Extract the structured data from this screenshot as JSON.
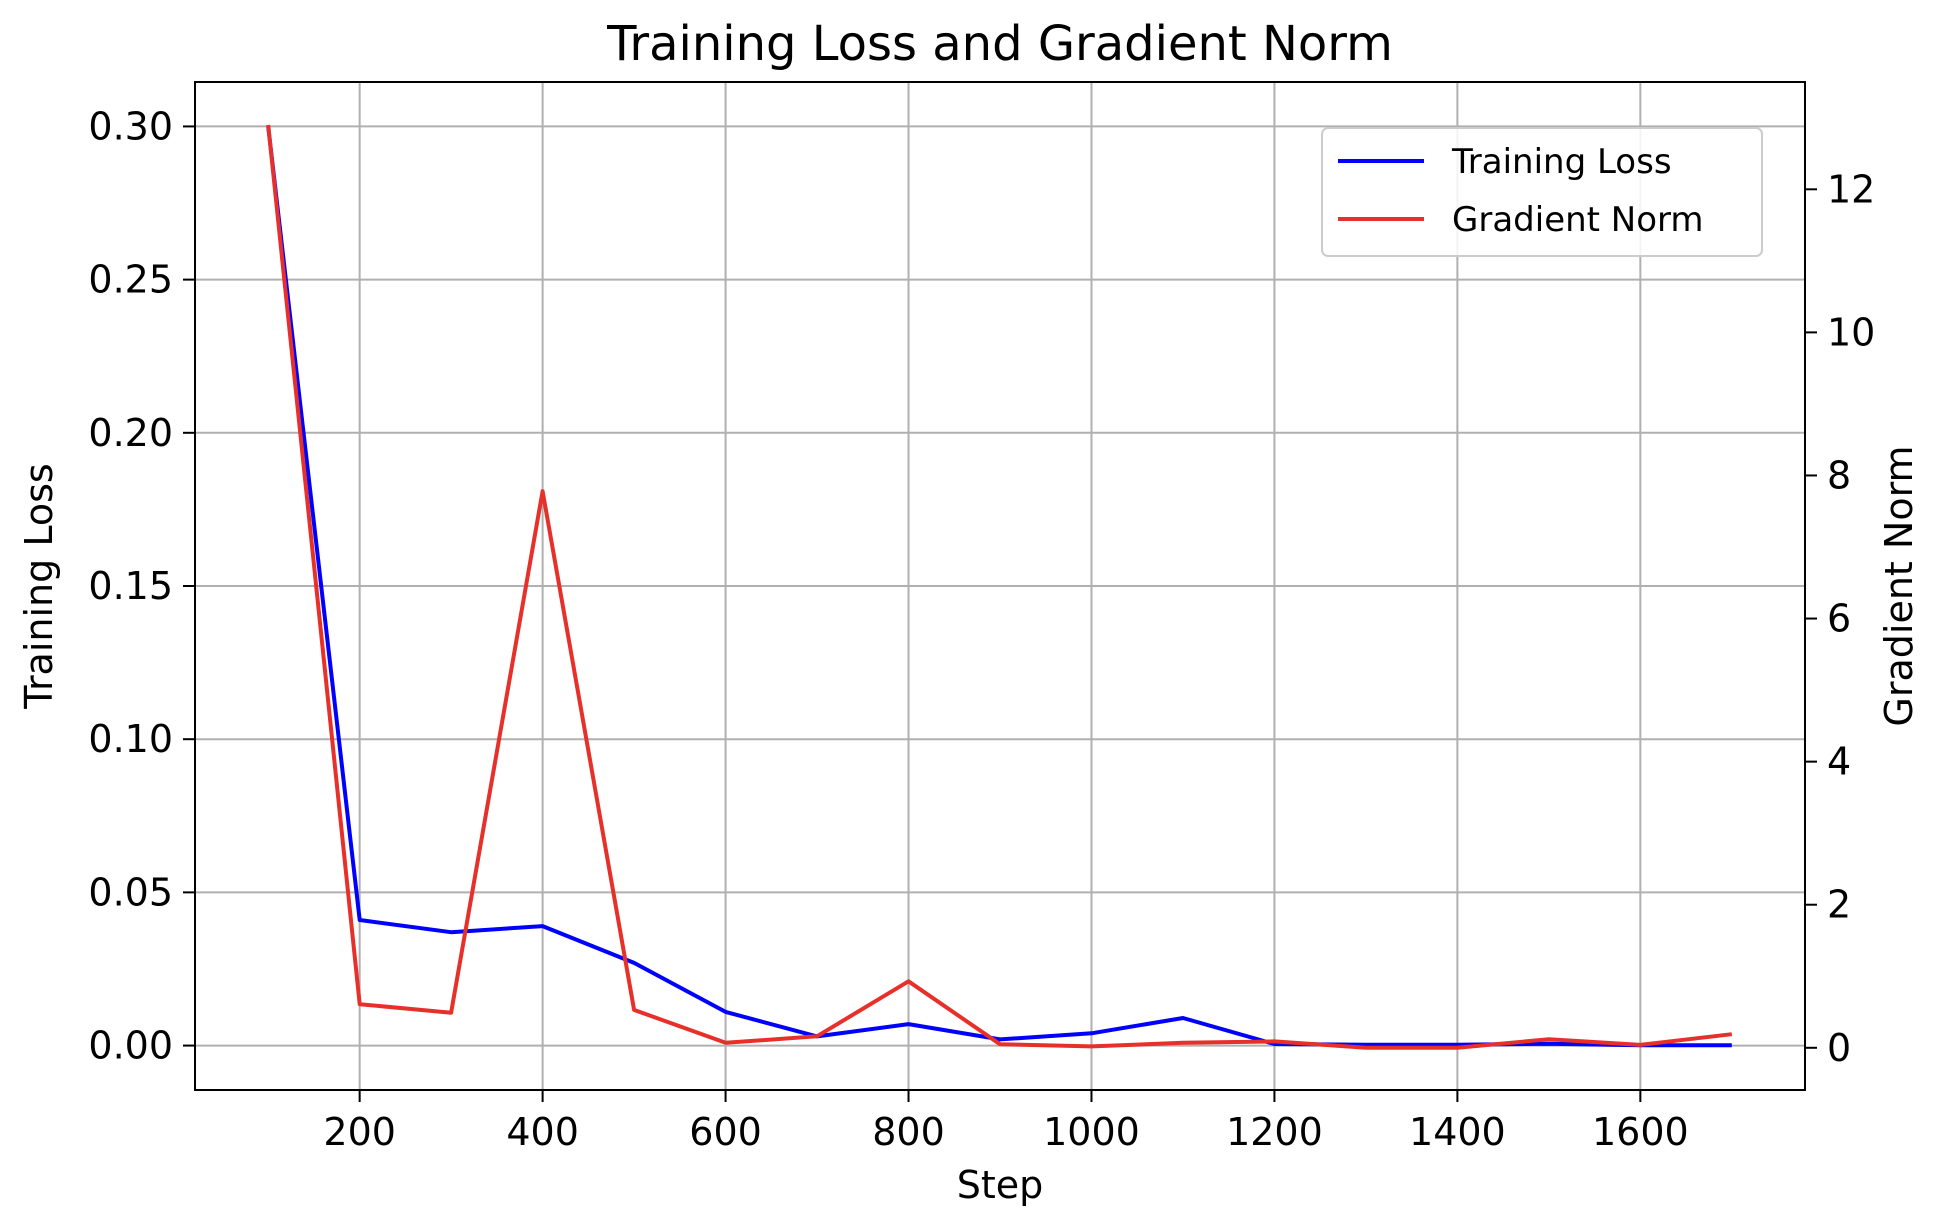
{
  "chart_data": {
    "type": "line",
    "title": "Training Loss and Gradient Norm",
    "xlabel": "Step",
    "ylabel_left": "Training Loss",
    "ylabel_right": "Gradient Norm",
    "x": [
      100,
      200,
      300,
      400,
      500,
      600,
      700,
      800,
      900,
      1000,
      1100,
      1200,
      1300,
      1400,
      1500,
      1600,
      1700
    ],
    "xlim": [
      20,
      1780
    ],
    "ylim_left": [
      -0.0145,
      0.3145
    ],
    "ylim_right": [
      -0.59,
      13.5
    ],
    "x_ticks": [
      "200",
      "400",
      "600",
      "800",
      "1000",
      "1200",
      "1400",
      "1600"
    ],
    "x_tick_values": [
      200,
      400,
      600,
      800,
      1000,
      1200,
      1400,
      1600
    ],
    "y_left_ticks": [
      "0.00",
      "0.05",
      "0.10",
      "0.15",
      "0.20",
      "0.25",
      "0.30"
    ],
    "y_left_tick_values": [
      0,
      0.05,
      0.1,
      0.15,
      0.2,
      0.25,
      0.3
    ],
    "y_right_ticks": [
      "0",
      "2",
      "4",
      "6",
      "8",
      "10",
      "12"
    ],
    "y_right_tick_values": [
      0,
      2,
      4,
      6,
      8,
      10,
      12
    ],
    "grid": true,
    "legend_position": "top-right",
    "series": [
      {
        "name": "Training Loss",
        "axis": "left",
        "color": "#0000ff",
        "values": [
          0.3,
          0.041,
          0.037,
          0.039,
          0.027,
          0.011,
          0.003,
          0.007,
          0.002,
          0.004,
          0.009,
          0.0005,
          0.0003,
          0.0003,
          0.0006,
          0.0001,
          0.0001
        ]
      },
      {
        "name": "Gradient Norm",
        "axis": "right",
        "color": "#e8302a",
        "values": [
          12.9,
          0.61,
          0.49,
          7.78,
          0.53,
          0.07,
          0.16,
          0.93,
          0.05,
          0.02,
          0.07,
          0.09,
          0.0,
          0.0,
          0.12,
          0.04,
          0.19
        ]
      }
    ]
  }
}
